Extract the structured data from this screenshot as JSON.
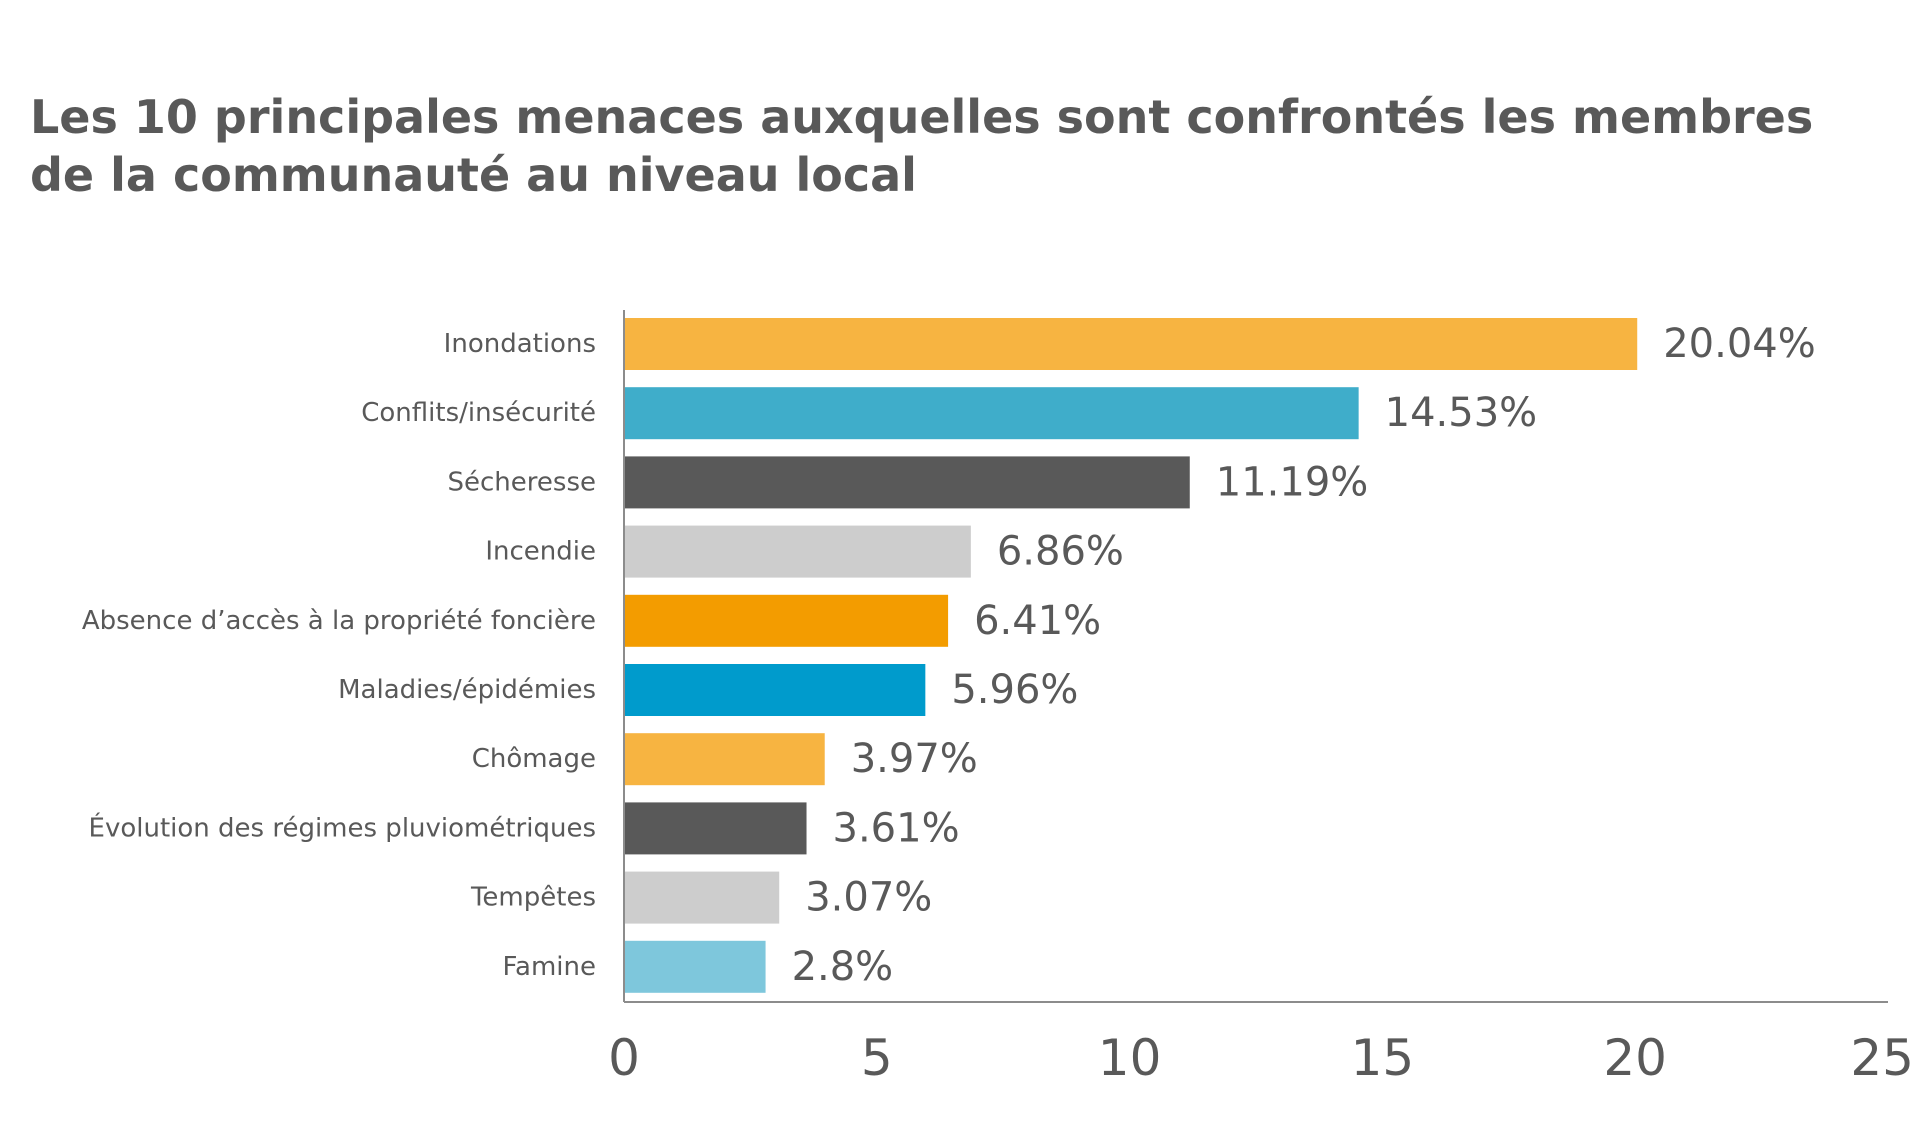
{
  "title_lines": [
    "Les 10 principales menaces auxquelles sont confrontés les membres",
    "de la communauté au niveau local"
  ],
  "chart_data": {
    "type": "bar",
    "orientation": "horizontal",
    "title": "Les 10 principales menaces auxquelles sont confrontés les membres de la communauté au niveau local",
    "categories": [
      "Inondations",
      "Conflits/insécurité",
      "Sécheresse",
      "Incendie",
      "Absence d’accès à la propriété foncière",
      "Maladies/épidémies",
      "Chômage",
      "Évolution des régimes pluviométriques",
      "Tempêtes",
      "Famine"
    ],
    "values": [
      20.04,
      14.53,
      11.19,
      6.86,
      6.41,
      5.96,
      3.97,
      3.61,
      3.07,
      2.8
    ],
    "data_labels": [
      "20.04%",
      "14.53%",
      "11.19%",
      "6.86%",
      "6.41%",
      "5.96%",
      "3.97%",
      "3.61%",
      "3.07%",
      "2.8%"
    ],
    "colors": [
      "#F7B441",
      "#3FADCA",
      "#595959",
      "#CDCDCD",
      "#F39C00",
      "#009BCC",
      "#F7B441",
      "#595959",
      "#CDCDCD",
      "#7EC7DC"
    ],
    "xlim": [
      0,
      25
    ],
    "xticks": [
      "0",
      "5",
      "10",
      "15",
      "20",
      "25"
    ],
    "xlabel": "",
    "ylabel": "",
    "grid": false
  }
}
